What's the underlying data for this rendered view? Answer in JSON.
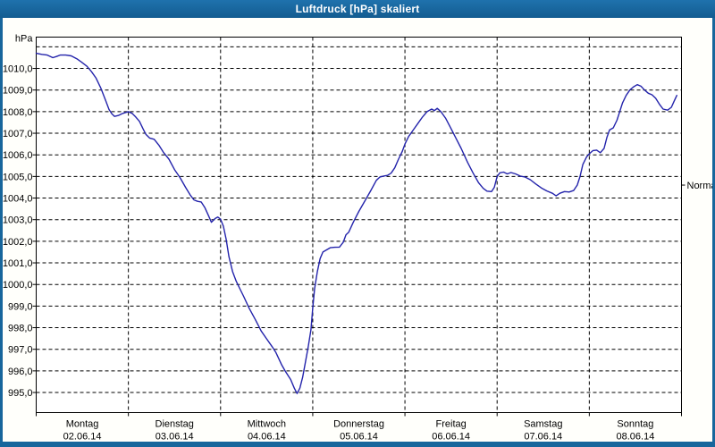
{
  "window": {
    "title": "Luftdruck [hPa] skaliert"
  },
  "colors": {
    "frame": "#17669c",
    "panel": "#fffffb",
    "plot_background": "#ffffff",
    "grid": "#000000",
    "line": "#2323ab",
    "title_text": "#ffffff",
    "axis_text": "#000000"
  },
  "chart_data": {
    "type": "line",
    "title": "Luftdruck [hPa] skaliert",
    "ylabel": "hPa",
    "xlabel": "",
    "grid": "dashed",
    "legend": "none",
    "ylim": [
      994.07,
      1011.45
    ],
    "y_ticks": [
      995,
      996,
      997,
      998,
      999,
      1000,
      1001,
      1002,
      1003,
      1004,
      1005,
      1006,
      1007,
      1008,
      1009,
      1010
    ],
    "y_gridlines": [
      995,
      996,
      997,
      998,
      999,
      1000,
      1001,
      1002,
      1003,
      1004,
      1005,
      1006,
      1007,
      1008,
      1009,
      1010,
      1011
    ],
    "decimal_format": "comma",
    "x_range_days": [
      0,
      7
    ],
    "x_days": [
      {
        "name": "Montag",
        "date": "02.06.14"
      },
      {
        "name": "Dienstag",
        "date": "03.06.14"
      },
      {
        "name": "Mittwoch",
        "date": "04.06.14"
      },
      {
        "name": "Donnerstag",
        "date": "05.06.14"
      },
      {
        "name": "Freitag",
        "date": "06.06.14"
      },
      {
        "name": "Samstag",
        "date": "07.06.14"
      },
      {
        "name": "Sonntag",
        "date": "08.06.14"
      }
    ],
    "normal_marker": {
      "label": "Normal",
      "value": 1004.6
    },
    "series": [
      {
        "name": "Luftdruck",
        "points": [
          [
            0.0,
            1010.7
          ],
          [
            0.06,
            1010.65
          ],
          [
            0.12,
            1010.62
          ],
          [
            0.18,
            1010.5
          ],
          [
            0.22,
            1010.55
          ],
          [
            0.26,
            1010.62
          ],
          [
            0.32,
            1010.62
          ],
          [
            0.38,
            1010.58
          ],
          [
            0.44,
            1010.45
          ],
          [
            0.49,
            1010.3
          ],
          [
            0.55,
            1010.1
          ],
          [
            0.6,
            1009.85
          ],
          [
            0.65,
            1009.55
          ],
          [
            0.7,
            1009.1
          ],
          [
            0.75,
            1008.55
          ],
          [
            0.79,
            1008.1
          ],
          [
            0.82,
            1007.9
          ],
          [
            0.85,
            1007.78
          ],
          [
            0.89,
            1007.82
          ],
          [
            0.94,
            1007.92
          ],
          [
            1.0,
            1008.0
          ],
          [
            1.04,
            1007.92
          ],
          [
            1.08,
            1007.75
          ],
          [
            1.12,
            1007.55
          ],
          [
            1.16,
            1007.2
          ],
          [
            1.19,
            1006.95
          ],
          [
            1.23,
            1006.78
          ],
          [
            1.28,
            1006.72
          ],
          [
            1.33,
            1006.45
          ],
          [
            1.38,
            1006.12
          ],
          [
            1.44,
            1005.8
          ],
          [
            1.5,
            1005.32
          ],
          [
            1.56,
            1004.95
          ],
          [
            1.62,
            1004.5
          ],
          [
            1.67,
            1004.15
          ],
          [
            1.71,
            1003.92
          ],
          [
            1.75,
            1003.85
          ],
          [
            1.79,
            1003.82
          ],
          [
            1.83,
            1003.55
          ],
          [
            1.87,
            1003.18
          ],
          [
            1.9,
            1002.88
          ],
          [
            1.94,
            1003.05
          ],
          [
            1.97,
            1003.12
          ],
          [
            2.0,
            1003.02
          ],
          [
            2.03,
            1002.7
          ],
          [
            2.06,
            1002.1
          ],
          [
            2.09,
            1001.3
          ],
          [
            2.13,
            1000.6
          ],
          [
            2.17,
            1000.15
          ],
          [
            2.21,
            999.8
          ],
          [
            2.25,
            999.45
          ],
          [
            2.31,
            998.9
          ],
          [
            2.38,
            998.35
          ],
          [
            2.44,
            997.85
          ],
          [
            2.5,
            997.48
          ],
          [
            2.56,
            997.12
          ],
          [
            2.6,
            996.85
          ],
          [
            2.66,
            996.3
          ],
          [
            2.7,
            996.0
          ],
          [
            2.76,
            995.6
          ],
          [
            2.8,
            995.2
          ],
          [
            2.83,
            994.95
          ],
          [
            2.86,
            995.2
          ],
          [
            2.89,
            995.7
          ],
          [
            2.92,
            996.4
          ],
          [
            2.95,
            997.1
          ],
          [
            2.98,
            997.9
          ],
          [
            3.0,
            998.9
          ],
          [
            3.02,
            999.8
          ],
          [
            3.05,
            1000.6
          ],
          [
            3.08,
            1001.2
          ],
          [
            3.11,
            1001.5
          ],
          [
            3.15,
            1001.6
          ],
          [
            3.19,
            1001.7
          ],
          [
            3.24,
            1001.72
          ],
          [
            3.29,
            1001.73
          ],
          [
            3.33,
            1001.95
          ],
          [
            3.36,
            1002.3
          ],
          [
            3.39,
            1002.42
          ],
          [
            3.44,
            1002.88
          ],
          [
            3.5,
            1003.38
          ],
          [
            3.57,
            1003.9
          ],
          [
            3.63,
            1004.35
          ],
          [
            3.69,
            1004.82
          ],
          [
            3.73,
            1004.98
          ],
          [
            3.77,
            1005.02
          ],
          [
            3.81,
            1005.05
          ],
          [
            3.85,
            1005.15
          ],
          [
            3.89,
            1005.4
          ],
          [
            3.93,
            1005.8
          ],
          [
            3.97,
            1006.15
          ],
          [
            4.0,
            1006.5
          ],
          [
            4.04,
            1006.85
          ],
          [
            4.09,
            1007.15
          ],
          [
            4.14,
            1007.45
          ],
          [
            4.19,
            1007.75
          ],
          [
            4.24,
            1008.0
          ],
          [
            4.29,
            1008.12
          ],
          [
            4.32,
            1008.05
          ],
          [
            4.35,
            1008.15
          ],
          [
            4.39,
            1008.0
          ],
          [
            4.44,
            1007.7
          ],
          [
            4.49,
            1007.3
          ],
          [
            4.55,
            1006.8
          ],
          [
            4.61,
            1006.3
          ],
          [
            4.68,
            1005.65
          ],
          [
            4.74,
            1005.15
          ],
          [
            4.8,
            1004.7
          ],
          [
            4.85,
            1004.45
          ],
          [
            4.89,
            1004.32
          ],
          [
            4.94,
            1004.3
          ],
          [
            4.97,
            1004.5
          ],
          [
            5.0,
            1005.0
          ],
          [
            5.03,
            1005.17
          ],
          [
            5.07,
            1005.2
          ],
          [
            5.11,
            1005.12
          ],
          [
            5.15,
            1005.18
          ],
          [
            5.2,
            1005.12
          ],
          [
            5.25,
            1005.02
          ],
          [
            5.3,
            1004.98
          ],
          [
            5.36,
            1004.85
          ],
          [
            5.42,
            1004.65
          ],
          [
            5.48,
            1004.47
          ],
          [
            5.54,
            1004.33
          ],
          [
            5.6,
            1004.22
          ],
          [
            5.64,
            1004.1
          ],
          [
            5.68,
            1004.22
          ],
          [
            5.73,
            1004.3
          ],
          [
            5.78,
            1004.28
          ],
          [
            5.83,
            1004.35
          ],
          [
            5.87,
            1004.6
          ],
          [
            5.9,
            1005.0
          ],
          [
            5.93,
            1005.55
          ],
          [
            5.97,
            1005.9
          ],
          [
            6.0,
            1006.05
          ],
          [
            6.04,
            1006.2
          ],
          [
            6.08,
            1006.22
          ],
          [
            6.12,
            1006.1
          ],
          [
            6.16,
            1006.3
          ],
          [
            6.19,
            1006.8
          ],
          [
            6.22,
            1007.15
          ],
          [
            6.26,
            1007.25
          ],
          [
            6.3,
            1007.6
          ],
          [
            6.33,
            1008.0
          ],
          [
            6.36,
            1008.4
          ],
          [
            6.4,
            1008.75
          ],
          [
            6.44,
            1009.0
          ],
          [
            6.48,
            1009.15
          ],
          [
            6.52,
            1009.25
          ],
          [
            6.56,
            1009.18
          ],
          [
            6.6,
            1009.0
          ],
          [
            6.64,
            1008.85
          ],
          [
            6.68,
            1008.78
          ],
          [
            6.72,
            1008.62
          ],
          [
            6.76,
            1008.35
          ],
          [
            6.8,
            1008.12
          ],
          [
            6.85,
            1008.07
          ],
          [
            6.89,
            1008.2
          ],
          [
            6.92,
            1008.48
          ],
          [
            6.95,
            1008.75
          ]
        ]
      }
    ]
  }
}
